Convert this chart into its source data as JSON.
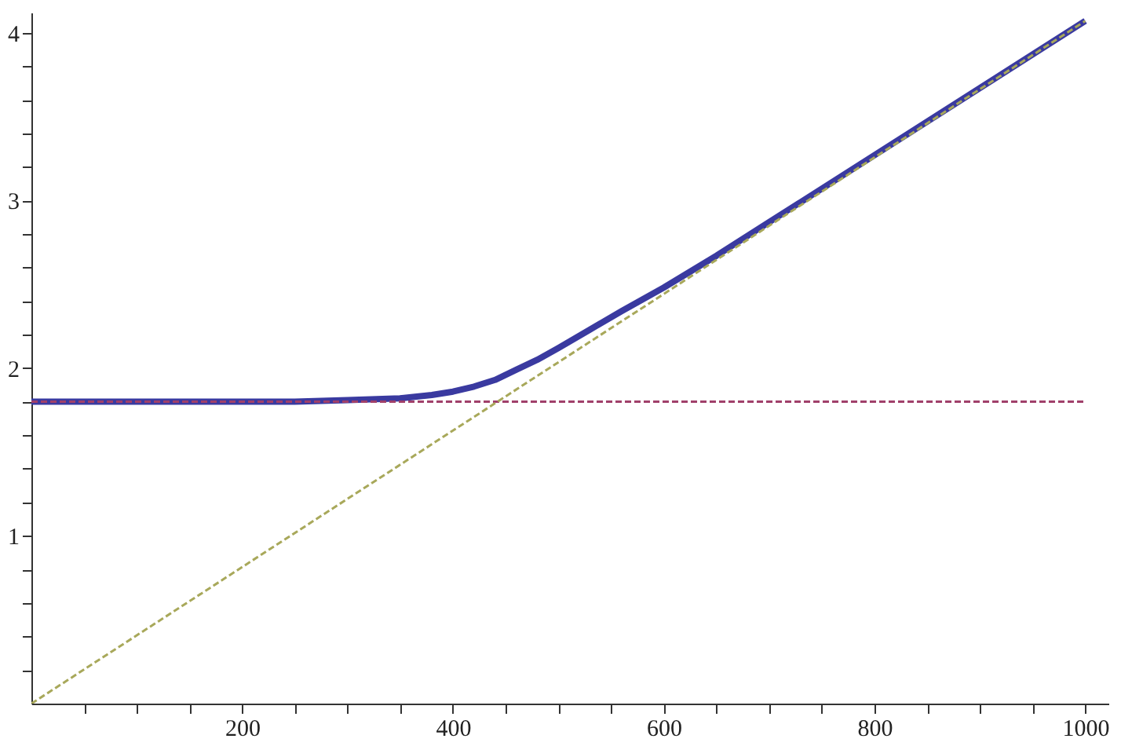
{
  "chart_data": {
    "type": "line",
    "xlim": [
      0,
      1022
    ],
    "ylim": [
      0,
      4.12
    ],
    "xticks": [
      {
        "value": 50,
        "label": null
      },
      {
        "value": 100,
        "label": null
      },
      {
        "value": 150,
        "label": null
      },
      200,
      {
        "value": 250,
        "label": null
      },
      {
        "value": 300,
        "label": null
      },
      {
        "value": 350,
        "label": null
      },
      400,
      {
        "value": 450,
        "label": null
      },
      {
        "value": 500,
        "label": null
      },
      {
        "value": 550,
        "label": null
      },
      600,
      {
        "value": 650,
        "label": null
      },
      {
        "value": 700,
        "label": null
      },
      {
        "value": 750,
        "label": null
      },
      800,
      {
        "value": 850,
        "label": null
      },
      {
        "value": 900,
        "label": null
      },
      {
        "value": 950,
        "label": null
      },
      1000
    ],
    "yticks": [
      {
        "value": 0.2,
        "label": null
      },
      {
        "value": 0.4,
        "label": null
      },
      {
        "value": 0.6,
        "label": null
      },
      {
        "value": 0.8,
        "label": null
      },
      1,
      {
        "value": 1.2,
        "label": null
      },
      {
        "value": 1.4,
        "label": null
      },
      {
        "value": 1.6,
        "label": null
      },
      {
        "value": 1.8,
        "label": null
      },
      2,
      {
        "value": 2.2,
        "label": null
      },
      {
        "value": 2.4,
        "label": null
      },
      {
        "value": 2.6,
        "label": null
      },
      {
        "value": 2.8,
        "label": null
      },
      3,
      {
        "value": 3.2,
        "label": null
      },
      {
        "value": 3.4,
        "label": null
      },
      {
        "value": 3.6,
        "label": null
      },
      {
        "value": 3.8,
        "label": null
      },
      4
    ],
    "grid": false,
    "legend": false,
    "series": [
      {
        "color": "#3a3aa0",
        "line_style": "solid",
        "x": [
          0,
          100,
          200,
          250,
          300,
          350,
          380,
          400,
          420,
          440,
          460,
          480,
          500,
          530,
          560,
          600,
          650,
          700,
          800,
          900,
          1000
        ],
        "values": [
          1.8,
          1.8,
          1.8,
          1.8,
          1.81,
          1.82,
          1.84,
          1.86,
          1.89,
          1.93,
          1.99,
          2.05,
          2.12,
          2.23,
          2.34,
          2.48,
          2.67,
          2.87,
          3.27,
          3.67,
          4.07
        ]
      },
      {
        "color": "#a0406a",
        "line_style": "dashed",
        "x": [
          0,
          1000
        ],
        "values": [
          1.8,
          1.8
        ]
      },
      {
        "color": "#a8a85a",
        "line_style": "dashed",
        "x": [
          0,
          1000
        ],
        "values": [
          0,
          4.07
        ]
      }
    ]
  }
}
